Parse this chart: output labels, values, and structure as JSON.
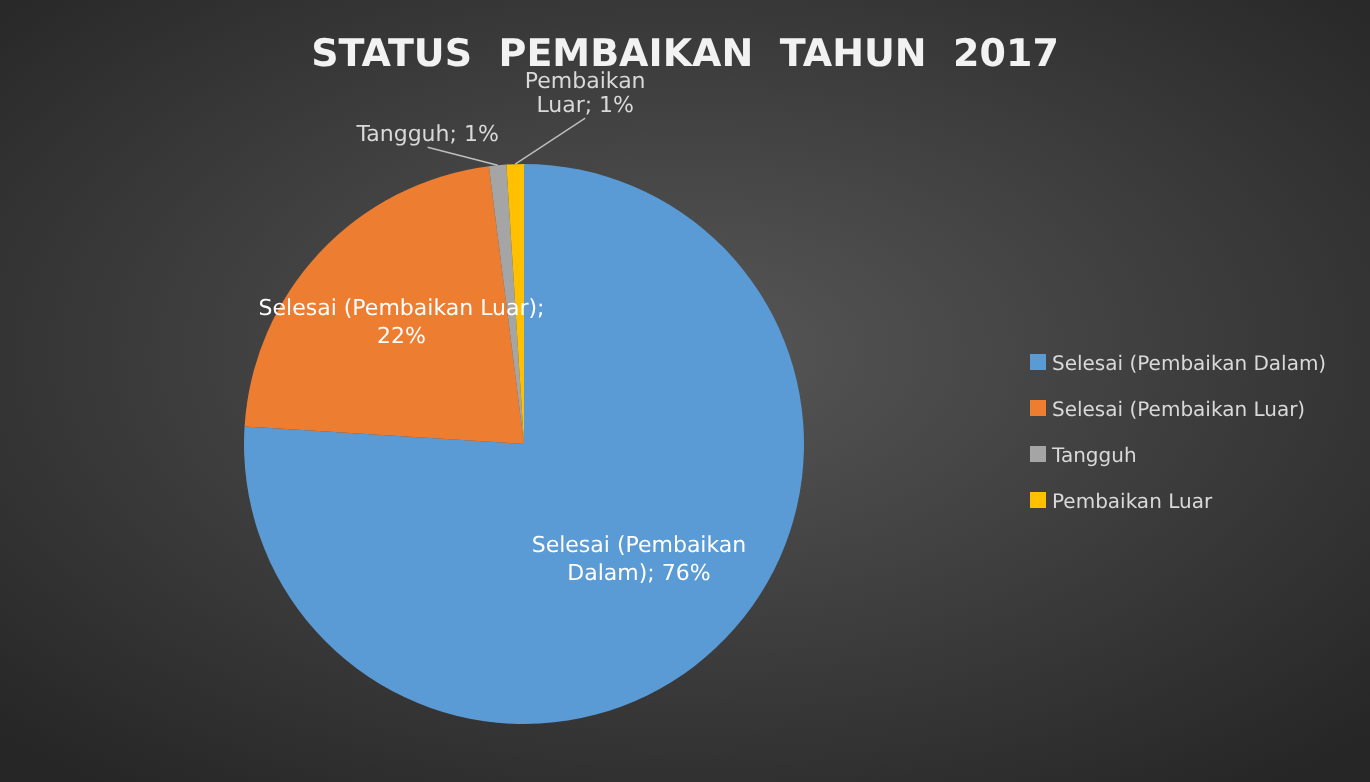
{
  "chart_data": {
    "type": "pie",
    "title": "STATUS  PEMBAIKAN  TAHUN  2017",
    "categories": [
      "Selesai (Pembaikan Dalam)",
      "Selesai (Pembaikan Luar)",
      "Tangguh",
      "Pembaikan Luar"
    ],
    "values": [
      76,
      22,
      1,
      1
    ],
    "colors": [
      "#5b9bd5",
      "#ed7d31",
      "#a5a5a5",
      "#ffc000"
    ],
    "value_labels": [
      "Selesai (Pembaikan Dalam); 76%",
      "Selesai (Pembaikan Luar); 22%",
      "Tangguh; 1%",
      "Pembaikan Luar; 1%"
    ],
    "legend": "right"
  }
}
